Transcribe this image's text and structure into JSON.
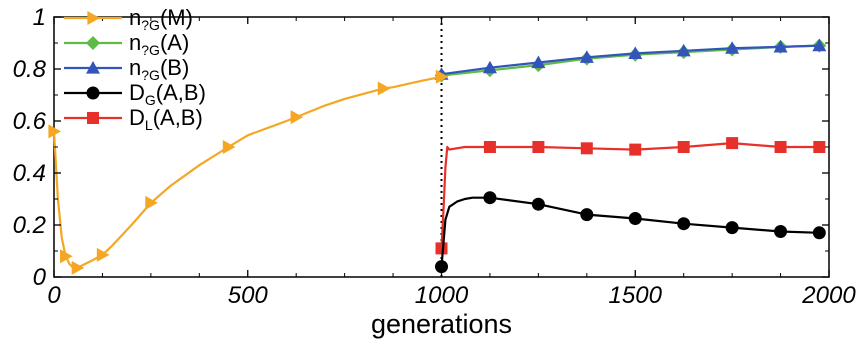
{
  "chart_data": {
    "type": "line",
    "title": "",
    "xlabel": "generations",
    "ylabel": "",
    "xlim": [
      0,
      2000
    ],
    "ylim": [
      0,
      1
    ],
    "x_ticks": [
      "0",
      "500",
      "1000",
      "1500",
      "2000"
    ],
    "y_ticks": [
      "0",
      "0.2",
      "0.4",
      "0.6",
      "0.8",
      "1"
    ],
    "x_tick_values": [
      0,
      500,
      1000,
      1500,
      2000
    ],
    "y_tick_values": [
      0,
      0.2,
      0.4,
      0.6,
      0.8,
      1
    ],
    "vline_x": 1000,
    "legend_position": "top-left",
    "series": [
      {
        "name": "n2G(M)",
        "label_main": "n",
        "label_sub": "?G",
        "label_rest": "(M)",
        "color": "#f5a623",
        "marker": "triangle-right",
        "x": [
          0,
          10,
          20,
          30,
          40,
          50,
          60,
          80,
          100,
          125,
          150,
          200,
          250,
          300,
          375,
          450,
          500,
          600,
          625,
          700,
          750,
          850,
          875,
          950,
          1000
        ],
        "y": [
          0.56,
          0.3,
          0.15,
          0.08,
          0.05,
          0.035,
          0.035,
          0.05,
          0.065,
          0.085,
          0.12,
          0.2,
          0.285,
          0.35,
          0.43,
          0.5,
          0.545,
          0.6,
          0.615,
          0.66,
          0.685,
          0.725,
          0.73,
          0.755,
          0.77
        ]
      },
      {
        "name": "n2G(A)",
        "label_main": "n",
        "label_sub": "?G",
        "label_rest": "(A)",
        "color": "#5dbb46",
        "marker": "diamond",
        "x": [
          1000,
          1125,
          1250,
          1375,
          1500,
          1625,
          1750,
          1875,
          1975
        ],
        "y": [
          0.775,
          0.795,
          0.815,
          0.84,
          0.855,
          0.865,
          0.875,
          0.885,
          0.89
        ]
      },
      {
        "name": "n2G(B)",
        "label_main": "n",
        "label_sub": "?G",
        "label_rest": "(B)",
        "color": "#3355bb",
        "marker": "triangle-up",
        "x": [
          1000,
          1125,
          1250,
          1375,
          1500,
          1625,
          1750,
          1875,
          1975
        ],
        "y": [
          0.78,
          0.805,
          0.825,
          0.845,
          0.86,
          0.87,
          0.88,
          0.885,
          0.89
        ]
      },
      {
        "name": "DG(A,B)",
        "label_main": "D",
        "label_sub": "G",
        "label_rest": "(A,B)",
        "color": "#000000",
        "marker": "circle",
        "x": [
          1000,
          1010,
          1020,
          1040,
          1060,
          1080,
          1125,
          1250,
          1375,
          1500,
          1625,
          1750,
          1875,
          1975
        ],
        "y": [
          0.04,
          0.22,
          0.27,
          0.29,
          0.3,
          0.305,
          0.305,
          0.28,
          0.24,
          0.225,
          0.205,
          0.19,
          0.175,
          0.17
        ]
      },
      {
        "name": "DL(A,B)",
        "label_main": "D",
        "label_sub": "L",
        "label_rest": "(A,B)",
        "color": "#e8302a",
        "marker": "square",
        "x": [
          1000,
          1005,
          1010,
          1015,
          1020,
          1060,
          1125,
          1250,
          1375,
          1500,
          1625,
          1750,
          1875,
          1975
        ],
        "y": [
          0.11,
          0.25,
          0.42,
          0.5,
          0.49,
          0.5,
          0.5,
          0.5,
          0.495,
          0.49,
          0.5,
          0.515,
          0.5,
          0.5
        ]
      }
    ]
  }
}
